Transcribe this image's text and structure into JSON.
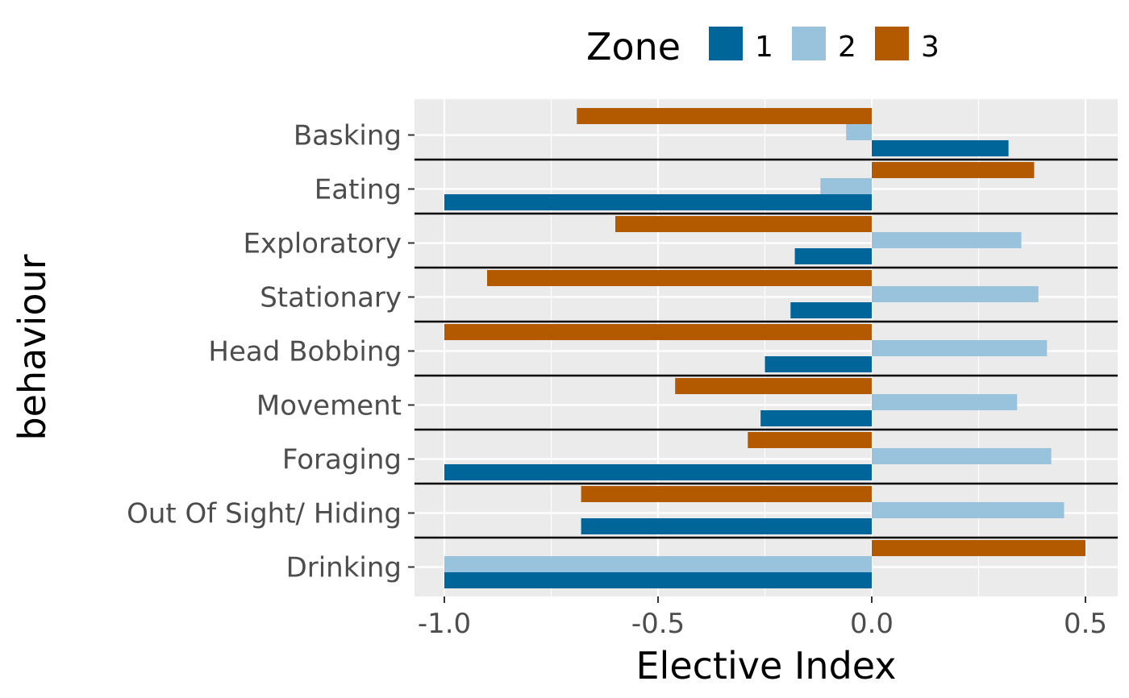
{
  "chart_data": {
    "type": "bar",
    "orientation": "horizontal",
    "xlabel": "Elective Index",
    "ylabel": "behaviour",
    "xlim": [
      -1.07,
      1.07
    ],
    "x_ticks": [
      "-1.0",
      "-0.5",
      "0.0",
      "0.5"
    ],
    "x_tick_values": [
      -1.0,
      -0.5,
      0.0,
      0.5
    ],
    "categories": [
      "Basking",
      "Eating",
      "Exploratory",
      "Stationary",
      "Head Bobbing",
      "Movement",
      "Foraging",
      "Out Of Sight/ Hiding",
      "Drinking"
    ],
    "legend": {
      "title": "Zone",
      "position": "top"
    },
    "grid": true,
    "series": [
      {
        "name": "1",
        "color": "#006699",
        "values": [
          0.32,
          -1.0,
          -0.18,
          -0.19,
          -0.25,
          -0.26,
          -1.0,
          -0.68,
          -1.0
        ]
      },
      {
        "name": "2",
        "color": "#99c2dc",
        "values": [
          -0.06,
          -0.12,
          0.35,
          0.39,
          0.41,
          0.34,
          0.42,
          0.45,
          -1.0
        ]
      },
      {
        "name": "3",
        "color": "#b35a00",
        "values": [
          -0.69,
          0.38,
          -0.6,
          -0.9,
          -1.0,
          -0.46,
          -0.29,
          -0.68,
          0.5
        ]
      }
    ]
  }
}
